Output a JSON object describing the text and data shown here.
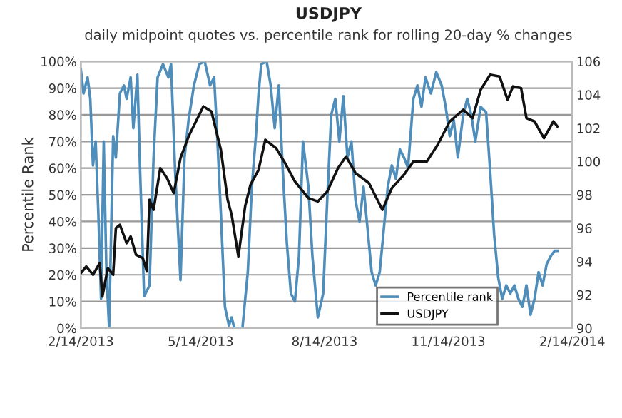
{
  "chart_data": {
    "type": "line",
    "title": "USDJPY",
    "subtitle": "daily midpoint quotes vs. percentile rank for rolling 20-day % changes",
    "ylabel": "Percentile Rank",
    "xlim": [
      "2013-02-14",
      "2014-02-14"
    ],
    "xticks": [
      {
        "value": "2013-02-14",
        "label": "2/14/2013"
      },
      {
        "value": "2013-05-14",
        "label": "5/14/2013"
      },
      {
        "value": "2013-08-14",
        "label": "8/14/2013"
      },
      {
        "value": "2013-11-14",
        "label": "11/14/2013"
      },
      {
        "value": "2014-02-14",
        "label": "2/14/2014"
      }
    ],
    "ylim": [
      0,
      100
    ],
    "yticks": [
      {
        "value": 0,
        "label": "0%"
      },
      {
        "value": 10,
        "label": "10%"
      },
      {
        "value": 20,
        "label": "20%"
      },
      {
        "value": 30,
        "label": "30%"
      },
      {
        "value": 40,
        "label": "40%"
      },
      {
        "value": 50,
        "label": "50%"
      },
      {
        "value": 60,
        "label": "60%"
      },
      {
        "value": 70,
        "label": "70%"
      },
      {
        "value": 80,
        "label": "80%"
      },
      {
        "value": 90,
        "label": "90%"
      },
      {
        "value": 100,
        "label": "100%"
      }
    ],
    "y2lim": [
      90,
      106
    ],
    "y2ticks": [
      90,
      92,
      94,
      96,
      98,
      100,
      102,
      104,
      106
    ],
    "grid": "y",
    "legend": "bottom right",
    "marker": "none",
    "line_style": "solid",
    "series": [
      {
        "name": "Percentile rank",
        "color": "#4f8dbb",
        "axis": "y",
        "x": [
          "2013-02-14",
          "2013-02-16",
          "2013-02-19",
          "2013-02-21",
          "2013-02-23",
          "2013-02-25",
          "2013-02-27",
          "2013-03-01",
          "2013-03-03",
          "2013-03-05",
          "2013-03-07",
          "2013-03-10",
          "2013-03-12",
          "2013-03-15",
          "2013-03-18",
          "2013-03-20",
          "2013-03-23",
          "2013-03-25",
          "2013-03-28",
          "2013-03-30",
          "2013-04-02",
          "2013-04-06",
          "2013-04-09",
          "2013-04-12",
          "2013-04-16",
          "2013-04-20",
          "2013-04-22",
          "2013-04-25",
          "2013-04-29",
          "2013-05-02",
          "2013-05-05",
          "2013-05-09",
          "2013-05-13",
          "2013-05-17",
          "2013-05-21",
          "2013-05-24",
          "2013-05-26",
          "2013-05-29",
          "2013-06-01",
          "2013-06-04",
          "2013-06-06",
          "2013-06-08",
          "2013-06-14",
          "2013-06-18",
          "2013-06-21",
          "2013-06-24",
          "2013-06-26",
          "2013-06-28",
          "2013-07-02",
          "2013-07-05",
          "2013-07-08",
          "2013-07-11",
          "2013-07-14",
          "2013-07-17",
          "2013-07-20",
          "2013-07-23",
          "2013-07-26",
          "2013-07-29",
          "2013-08-02",
          "2013-08-05",
          "2013-08-09",
          "2013-08-13",
          "2013-08-16",
          "2013-08-19",
          "2013-08-22",
          "2013-08-25",
          "2013-08-28",
          "2013-08-31",
          "2013-09-03",
          "2013-09-06",
          "2013-09-09",
          "2013-09-12",
          "2013-09-15",
          "2013-09-18",
          "2013-09-21",
          "2013-09-24",
          "2013-09-27",
          "2013-09-30",
          "2013-10-03",
          "2013-10-06",
          "2013-10-09",
          "2013-10-12",
          "2013-10-15",
          "2013-10-19",
          "2013-10-22",
          "2013-10-25",
          "2013-10-28",
          "2013-11-01",
          "2013-11-05",
          "2013-11-09",
          "2013-11-12",
          "2013-11-15",
          "2013-11-18",
          "2013-11-21",
          "2013-11-25",
          "2013-11-28",
          "2013-12-01",
          "2013-12-04",
          "2013-12-08",
          "2013-12-12",
          "2013-12-15",
          "2013-12-18",
          "2013-12-21",
          "2013-12-24",
          "2013-12-27",
          "2013-12-30",
          "2014-01-02",
          "2014-01-05",
          "2014-01-08",
          "2014-01-11",
          "2014-01-14",
          "2014-01-17",
          "2014-01-20",
          "2014-01-23",
          "2014-01-26",
          "2014-01-29",
          "2014-02-01",
          "2014-02-03"
        ],
        "values": [
          97,
          88,
          94,
          86,
          61,
          70,
          43,
          11,
          70,
          21,
          0,
          72,
          64,
          88,
          91,
          86,
          94,
          75,
          95,
          59,
          12,
          16,
          64,
          94,
          99,
          94,
          99,
          59,
          18,
          64,
          78,
          91,
          99,
          100,
          91,
          94,
          75,
          43,
          8,
          1,
          4,
          0,
          0,
          21,
          53,
          72,
          88,
          99,
          100,
          91,
          75,
          91,
          59,
          32,
          13,
          10,
          27,
          70,
          53,
          27,
          4,
          13,
          48,
          80,
          86,
          70,
          87,
          64,
          70,
          48,
          40,
          53,
          37,
          21,
          16,
          21,
          37,
          53,
          61,
          56,
          67,
          64,
          60,
          86,
          91,
          83,
          94,
          88,
          96,
          91,
          83,
          72,
          78,
          64,
          80,
          86,
          80,
          70,
          83,
          81,
          59,
          35,
          19,
          11,
          16,
          13,
          16,
          11,
          8,
          16,
          5,
          11,
          21,
          16,
          24,
          27,
          29,
          29
        ]
      },
      {
        "name": "USDJPY",
        "color": "#111111",
        "axis": "y2",
        "x": [
          "2013-02-14",
          "2013-02-18",
          "2013-02-23",
          "2013-02-28",
          "2013-03-02",
          "2013-03-06",
          "2013-03-10",
          "2013-03-12",
          "2013-03-15",
          "2013-03-20",
          "2013-03-23",
          "2013-03-27",
          "2013-04-01",
          "2013-04-04",
          "2013-04-06",
          "2013-04-09",
          "2013-04-14",
          "2013-04-19",
          "2013-04-24",
          "2013-04-29",
          "2013-05-05",
          "2013-05-16",
          "2013-05-22",
          "2013-05-29",
          "2013-06-03",
          "2013-06-06",
          "2013-06-11",
          "2013-06-16",
          "2013-06-20",
          "2013-06-26",
          "2013-07-01",
          "2013-07-09",
          "2013-07-15",
          "2013-07-23",
          "2013-07-28",
          "2013-08-02",
          "2013-08-09",
          "2013-08-16",
          "2013-08-24",
          "2013-08-30",
          "2013-09-06",
          "2013-09-16",
          "2013-09-26",
          "2013-10-03",
          "2013-10-12",
          "2013-10-19",
          "2013-10-29",
          "2013-11-06",
          "2013-11-15",
          "2013-11-25",
          "2013-12-02",
          "2013-12-08",
          "2013-12-15",
          "2013-12-22",
          "2013-12-28",
          "2014-01-01",
          "2014-01-07",
          "2014-01-11",
          "2014-01-17",
          "2014-01-24",
          "2014-01-31",
          "2014-02-03"
        ],
        "values": [
          93.3,
          93.7,
          93.2,
          93.9,
          91.9,
          93.6,
          93.2,
          96.0,
          96.2,
          95.1,
          95.5,
          94.4,
          94.2,
          93.4,
          97.7,
          97.1,
          99.6,
          99.0,
          98.1,
          100.2,
          101.5,
          103.3,
          103.0,
          100.7,
          97.7,
          96.8,
          94.3,
          97.3,
          98.6,
          99.5,
          101.3,
          100.8,
          100.0,
          98.8,
          98.3,
          97.8,
          97.6,
          98.2,
          99.6,
          100.3,
          99.3,
          98.7,
          97.1,
          98.4,
          99.2,
          100.0,
          100.0,
          101.0,
          102.4,
          103.1,
          102.6,
          104.3,
          105.2,
          105.1,
          103.7,
          104.5,
          104.4,
          102.6,
          102.4,
          101.4,
          102.4,
          102.1
        ]
      }
    ]
  }
}
